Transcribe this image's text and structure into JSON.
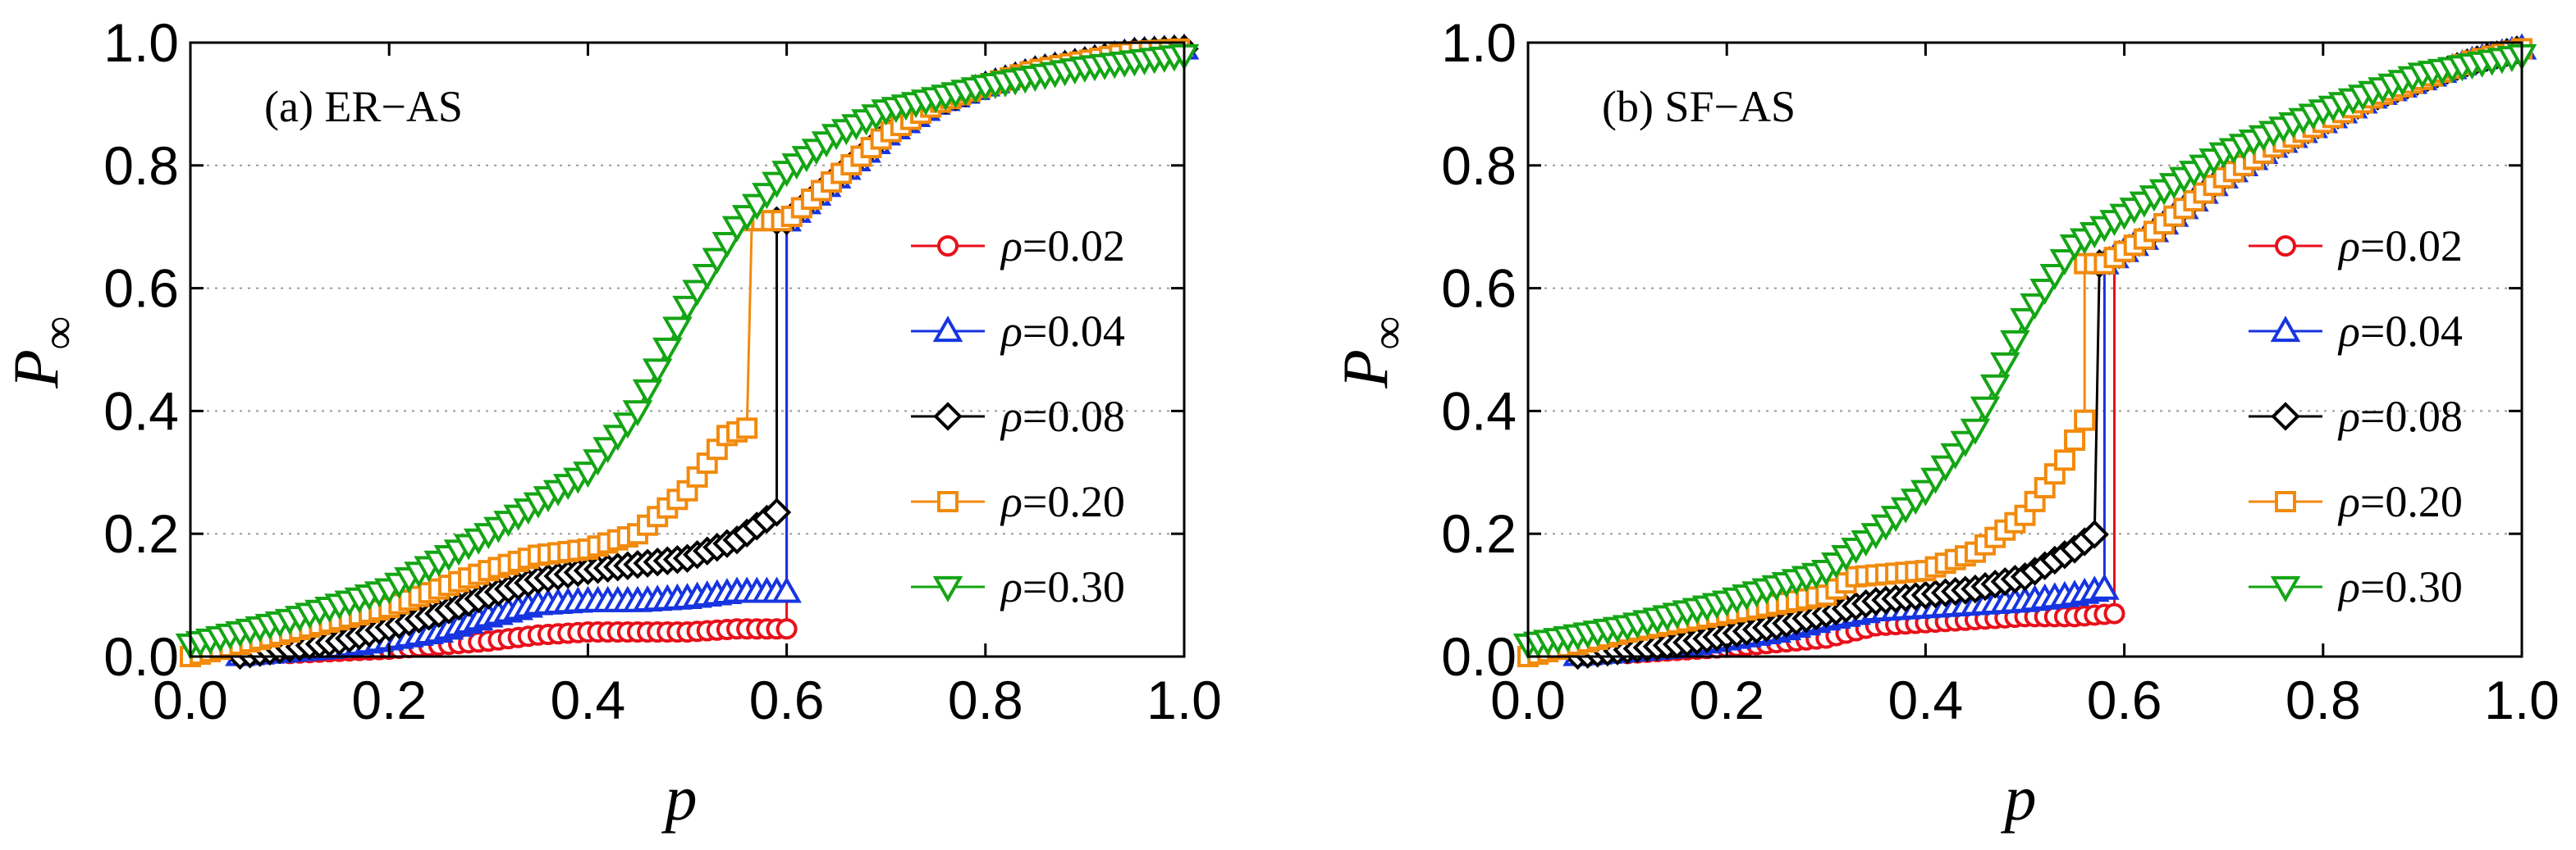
{
  "chart_data": [
    {
      "type": "line",
      "panel_label": "(a) ER−AS",
      "xlabel": "p",
      "ylabel_main": "P",
      "ylabel_sub": "∞",
      "xlim": [
        0,
        1
      ],
      "ylim": [
        0,
        1
      ],
      "xticks": [
        "0.0",
        "0.2",
        "0.4",
        "0.6",
        "0.8",
        "1.0"
      ],
      "yticks": [
        "0.0",
        "0.2",
        "0.4",
        "0.6",
        "0.8",
        "1.0"
      ],
      "grid": "horizontal dotted",
      "legend_position": "right",
      "series": [
        {
          "name": "ρ=0.02",
          "rho_symbol": "ρ",
          "rho_value": "=0.02",
          "color": "#e8101a",
          "marker": "circle",
          "jump": 0.6,
          "points": [
            [
              0.1,
              0.005
            ],
            [
              0.2,
              0.012
            ],
            [
              0.3,
              0.025
            ],
            [
              0.35,
              0.035
            ],
            [
              0.4,
              0.04
            ],
            [
              0.45,
              0.04
            ],
            [
              0.5,
              0.04
            ],
            [
              0.55,
              0.045
            ],
            [
              0.6,
              0.045
            ]
          ]
        },
        {
          "name": "ρ=0.04",
          "rho_symbol": "ρ",
          "rho_value": "=0.04",
          "color": "#1634e0",
          "marker": "triangle-up",
          "jump": 0.6,
          "points": [
            [
              0.05,
              0.002
            ],
            [
              0.15,
              0.015
            ],
            [
              0.25,
              0.04
            ],
            [
              0.3,
              0.065
            ],
            [
              0.35,
              0.085
            ],
            [
              0.4,
              0.09
            ],
            [
              0.45,
              0.09
            ],
            [
              0.5,
              0.095
            ],
            [
              0.55,
              0.105
            ],
            [
              0.6,
              0.105
            ]
          ]
        },
        {
          "name": "ρ=0.08",
          "rho_symbol": "ρ",
          "rho_value": "=0.08",
          "color": "#000000",
          "marker": "diamond",
          "jump": 0.59,
          "points": [
            [
              0.05,
              0.002
            ],
            [
              0.15,
              0.025
            ],
            [
              0.25,
              0.07
            ],
            [
              0.3,
              0.1
            ],
            [
              0.35,
              0.125
            ],
            [
              0.4,
              0.14
            ],
            [
              0.45,
              0.15
            ],
            [
              0.5,
              0.16
            ],
            [
              0.55,
              0.19
            ],
            [
              0.59,
              0.235
            ]
          ]
        },
        {
          "name": "ρ=0.20",
          "rho_symbol": "ρ",
          "rho_value": "=0.20",
          "color": "#f28a0c",
          "marker": "square",
          "jump": 0.565,
          "points": [
            [
              0.0,
              0.0
            ],
            [
              0.1,
              0.04
            ],
            [
              0.2,
              0.08
            ],
            [
              0.3,
              0.14
            ],
            [
              0.35,
              0.165
            ],
            [
              0.4,
              0.175
            ],
            [
              0.45,
              0.2
            ],
            [
              0.5,
              0.27
            ],
            [
              0.54,
              0.36
            ],
            [
              0.565,
              0.375
            ]
          ]
        },
        {
          "name": "ρ=0.30",
          "rho_symbol": "ρ",
          "rho_value": "=0.30",
          "color": "#14a514",
          "marker": "triangle-down",
          "jump": null,
          "points": [
            [
              0.0,
              0.02
            ],
            [
              0.1,
              0.06
            ],
            [
              0.2,
              0.11
            ],
            [
              0.3,
              0.2
            ],
            [
              0.35,
              0.25
            ],
            [
              0.4,
              0.3
            ],
            [
              0.45,
              0.4
            ],
            [
              0.5,
              0.57
            ],
            [
              0.55,
              0.7
            ],
            [
              0.6,
              0.79
            ],
            [
              0.65,
              0.85
            ],
            [
              0.7,
              0.89
            ],
            [
              0.8,
              0.93
            ],
            [
              0.9,
              0.96
            ],
            [
              1.0,
              0.98
            ]
          ]
        }
      ],
      "upper_branch": [
        [
          0.6,
          0.71
        ],
        [
          0.65,
          0.78
        ],
        [
          0.7,
          0.85
        ],
        [
          0.75,
          0.9
        ],
        [
          0.8,
          0.93
        ],
        [
          0.85,
          0.955
        ],
        [
          0.9,
          0.97
        ],
        [
          0.95,
          0.985
        ],
        [
          1.0,
          0.99
        ]
      ]
    },
    {
      "type": "line",
      "panel_label": "(b) SF−AS",
      "xlabel": "p",
      "ylabel_main": "P",
      "ylabel_sub": "∞",
      "xlim": [
        0,
        1
      ],
      "ylim": [
        0,
        1
      ],
      "xticks": [
        "0.0",
        "0.2",
        "0.4",
        "0.6",
        "0.8",
        "1.0"
      ],
      "yticks": [
        "0.0",
        "0.2",
        "0.4",
        "0.6",
        "0.8",
        "1.0"
      ],
      "grid": "horizontal dotted",
      "legend_position": "right",
      "series": [
        {
          "name": "ρ=0.02",
          "rho_symbol": "ρ",
          "rho_value": "=0.02",
          "color": "#e8101a",
          "marker": "circle",
          "jump": 0.59,
          "points": [
            [
              0.1,
              0.005
            ],
            [
              0.2,
              0.015
            ],
            [
              0.3,
              0.03
            ],
            [
              0.35,
              0.05
            ],
            [
              0.4,
              0.055
            ],
            [
              0.45,
              0.06
            ],
            [
              0.5,
              0.065
            ],
            [
              0.55,
              0.065
            ],
            [
              0.59,
              0.07
            ]
          ]
        },
        {
          "name": "ρ=0.04",
          "rho_symbol": "ρ",
          "rho_value": "=0.04",
          "color": "#1634e0",
          "marker": "triangle-up",
          "jump": 0.58,
          "points": [
            [
              0.05,
              0.002
            ],
            [
              0.15,
              0.015
            ],
            [
              0.25,
              0.04
            ],
            [
              0.3,
              0.06
            ],
            [
              0.35,
              0.075
            ],
            [
              0.4,
              0.08
            ],
            [
              0.45,
              0.085
            ],
            [
              0.5,
              0.09
            ],
            [
              0.55,
              0.1
            ],
            [
              0.58,
              0.11
            ]
          ]
        },
        {
          "name": "ρ=0.08",
          "rho_symbol": "ρ",
          "rho_value": "=0.08",
          "color": "#000000",
          "marker": "diamond",
          "jump": 0.575,
          "points": [
            [
              0.05,
              0.002
            ],
            [
              0.15,
              0.02
            ],
            [
              0.25,
              0.05
            ],
            [
              0.3,
              0.07
            ],
            [
              0.35,
              0.09
            ],
            [
              0.4,
              0.1
            ],
            [
              0.45,
              0.11
            ],
            [
              0.5,
              0.13
            ],
            [
              0.55,
              0.175
            ],
            [
              0.575,
              0.205
            ]
          ]
        },
        {
          "name": "ρ=0.20",
          "rho_symbol": "ρ",
          "rho_value": "=0.20",
          "color": "#f28a0c",
          "marker": "square",
          "jump": 0.56,
          "points": [
            [
              0.0,
              0.0
            ],
            [
              0.1,
              0.04
            ],
            [
              0.2,
              0.07
            ],
            [
              0.3,
              0.1
            ],
            [
              0.33,
              0.13
            ],
            [
              0.4,
              0.14
            ],
            [
              0.45,
              0.17
            ],
            [
              0.5,
              0.23
            ],
            [
              0.54,
              0.32
            ],
            [
              0.56,
              0.385
            ]
          ]
        },
        {
          "name": "ρ=0.30",
          "rho_symbol": "ρ",
          "rho_value": "=0.30",
          "color": "#14a514",
          "marker": "triangle-down",
          "jump": null,
          "points": [
            [
              0.0,
              0.02
            ],
            [
              0.1,
              0.05
            ],
            [
              0.2,
              0.09
            ],
            [
              0.3,
              0.14
            ],
            [
              0.35,
              0.2
            ],
            [
              0.4,
              0.27
            ],
            [
              0.45,
              0.37
            ],
            [
              0.5,
              0.55
            ],
            [
              0.55,
              0.67
            ],
            [
              0.6,
              0.72
            ],
            [
              0.65,
              0.77
            ],
            [
              0.7,
              0.82
            ],
            [
              0.8,
              0.89
            ],
            [
              0.9,
              0.95
            ],
            [
              1.0,
              0.98
            ]
          ]
        }
      ],
      "upper_branch": [
        [
          0.58,
          0.64
        ],
        [
          0.62,
          0.68
        ],
        [
          0.66,
          0.73
        ],
        [
          0.7,
          0.78
        ],
        [
          0.75,
          0.83
        ],
        [
          0.8,
          0.87
        ],
        [
          0.85,
          0.91
        ],
        [
          0.9,
          0.94
        ],
        [
          0.95,
          0.97
        ],
        [
          1.0,
          0.99
        ]
      ]
    }
  ]
}
